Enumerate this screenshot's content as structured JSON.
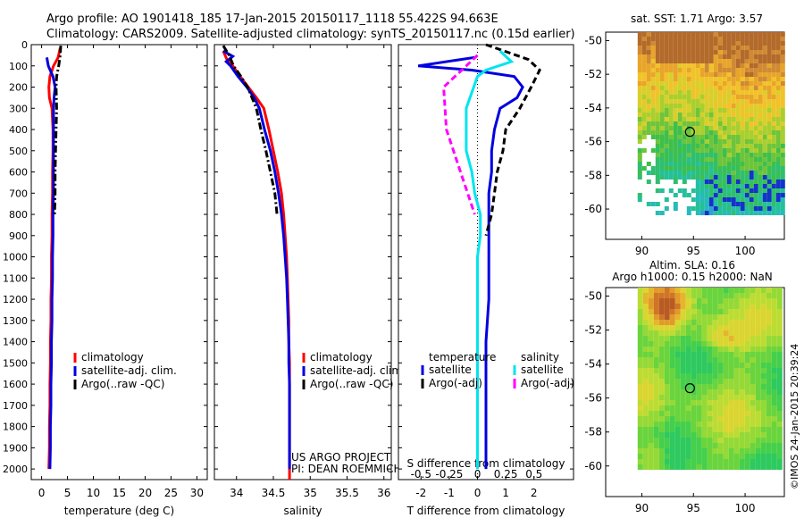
{
  "header": {
    "line1": "Argo profile: AO 1901418_185 17-Jan-2015 20150117_1118 55.422S 94.663E",
    "line2": "Climatology: CARS2009. Satellite-adjusted climatology: synTS_20150117.nc (0.15d earlier)"
  },
  "chart_data": [
    {
      "type": "line",
      "xlabel": "temperature (deg C)",
      "ylabel": "",
      "xlim": [
        -2,
        32
      ],
      "ylim": [
        2050,
        0
      ],
      "xticks": [
        0,
        5,
        10,
        15,
        20,
        25,
        30
      ],
      "yticks": [
        0,
        100,
        200,
        300,
        400,
        500,
        600,
        700,
        800,
        900,
        1000,
        1100,
        1200,
        1300,
        1400,
        1500,
        1600,
        1700,
        1800,
        1900,
        2000
      ],
      "legend": "lower-left",
      "series": [
        {
          "name": "climatology",
          "color": "#ff0000",
          "dash": "solid",
          "x": [
            3.6,
            3.2,
            2.3,
            1.6,
            1.4,
            1.5,
            2.0,
            2.2,
            2.2,
            2.1,
            2.1,
            2.0,
            2.0,
            1.9,
            1.9,
            1.8,
            1.8,
            1.7,
            1.7,
            1.6,
            1.6,
            1.5,
            1.5,
            1.4
          ],
          "y": [
            15,
            60,
            100,
            150,
            200,
            250,
            300,
            400,
            500,
            600,
            700,
            800,
            900,
            1000,
            1100,
            1200,
            1300,
            1400,
            1500,
            1600,
            1700,
            1800,
            1900,
            2000
          ]
        },
        {
          "name": "satellite-adj. clim.",
          "color": "#0000e0",
          "dash": "solid",
          "x": [
            1.0,
            1.3,
            2.2,
            2.6,
            2.4,
            2.3,
            2.3,
            2.3,
            2.3,
            2.3,
            2.2,
            2.2,
            2.1,
            2.1,
            2.0,
            2.0,
            1.9,
            1.9,
            1.8,
            1.8,
            1.7,
            1.7,
            1.6
          ],
          "y": [
            60,
            100,
            150,
            200,
            250,
            300,
            400,
            500,
            600,
            700,
            800,
            900,
            1000,
            1100,
            1200,
            1300,
            1400,
            1500,
            1600,
            1700,
            1800,
            1900,
            2000
          ]
        },
        {
          "name": "Argo(..raw -QC)",
          "color": "#000000",
          "dash": "dashdot",
          "x": [
            3.7,
            3.6,
            3.3,
            2.9,
            2.8,
            2.9,
            2.8,
            2.7,
            2.6,
            2.6,
            2.5
          ],
          "y": [
            5,
            50,
            100,
            150,
            200,
            300,
            400,
            500,
            600,
            700,
            800
          ]
        }
      ]
    },
    {
      "type": "line",
      "xlabel": "salinity",
      "ylabel": "",
      "xlim": [
        33.7,
        36.1
      ],
      "ylim": [
        2050,
        0
      ],
      "xticks": [
        34,
        34.5,
        35,
        35.5,
        36
      ],
      "legend": "lower-right",
      "annotation": [
        "US ARGO PROJECT",
        "PI: DEAN ROEMMICH"
      ],
      "series": [
        {
          "name": "climatology",
          "color": "#ff0000",
          "dash": "solid",
          "x": [
            33.82,
            33.87,
            33.95,
            34.05,
            34.16,
            34.27,
            34.37,
            34.44,
            34.5,
            34.56,
            34.61,
            34.64,
            34.66,
            34.68,
            34.69,
            34.7,
            34.71,
            34.71,
            34.72,
            34.72,
            34.72,
            34.72,
            34.72,
            34.72,
            34.72,
            34.72,
            34.72,
            34.72,
            34.72
          ],
          "y": [
            30,
            70,
            100,
            150,
            200,
            250,
            300,
            400,
            500,
            600,
            700,
            800,
            900,
            1000,
            1100,
            1200,
            1300,
            1400,
            1500,
            1600,
            1700,
            1800,
            1900,
            2000,
            2050,
            2050,
            2050,
            2050,
            2050
          ]
        },
        {
          "name": "satellite-adj. clim.",
          "color": "#0000e0",
          "dash": "solid",
          "x": [
            33.82,
            33.95,
            33.86,
            33.92,
            34.02,
            34.14,
            34.24,
            34.31,
            34.38,
            34.46,
            34.52,
            34.57,
            34.61,
            34.64,
            34.66,
            34.68,
            34.69,
            34.7,
            34.71,
            34.71,
            34.72,
            34.72,
            34.72,
            34.72,
            34.72
          ],
          "y": [
            30,
            55,
            80,
            100,
            150,
            200,
            250,
            300,
            400,
            500,
            600,
            700,
            800,
            900,
            1000,
            1100,
            1200,
            1300,
            1400,
            1500,
            1600,
            1700,
            1800,
            1900,
            2000
          ]
        },
        {
          "name": "Argo(..raw -QC)",
          "color": "#000000",
          "dash": "dashdot",
          "x": [
            33.82,
            33.9,
            33.96,
            34.06,
            34.15,
            34.21,
            34.27,
            34.33,
            34.4,
            34.46,
            34.52,
            34.55
          ],
          "y": [
            5,
            50,
            100,
            150,
            200,
            250,
            300,
            400,
            500,
            600,
            700,
            800
          ]
        }
      ]
    },
    {
      "type": "line",
      "xlabel": "T difference from climatology",
      "xlabel2": "S difference from climatology",
      "ylabel": "",
      "xlim": [
        -2.8,
        3.4
      ],
      "ylim": [
        2050,
        0
      ],
      "xticks": [
        -2,
        -1,
        0,
        1,
        2
      ],
      "xticks_s": [
        -0.5,
        -0.25,
        0,
        0.25,
        0.5
      ],
      "legend_groups": [
        "temperature",
        "salinity"
      ],
      "legend": "lower-center",
      "series": [
        {
          "name": "satellite",
          "group": "temperature",
          "color": "#0000e0",
          "dash": "solid",
          "x": [
            -0.1,
            -2.1,
            -0.2,
            1.3,
            1.6,
            1.4,
            0.8,
            0.6,
            0.5,
            0.5,
            0.4,
            0.4,
            0.4,
            0.4,
            0.4,
            0.3,
            0.3,
            0.3,
            0.3,
            0.3
          ],
          "y": [
            60,
            100,
            120,
            150,
            200,
            250,
            300,
            400,
            500,
            600,
            700,
            800,
            900,
            1000,
            1200,
            1400,
            1600,
            1800,
            1900,
            2000
          ]
        },
        {
          "name": "Argo(-adj)",
          "group": "temperature",
          "color": "#000000",
          "dash": "dashed",
          "x": [
            0.3,
            1.8,
            2.2,
            1.9,
            1.5,
            1.0,
            0.9,
            0.7,
            0.6,
            0.5,
            0.3
          ],
          "y": [
            0,
            70,
            120,
            200,
            300,
            400,
            500,
            600,
            700,
            800,
            900
          ]
        },
        {
          "name": "satellite",
          "group": "salinity",
          "color": "#00e5ee",
          "dash": "solid",
          "x": [
            0.8,
            1.2,
            0.3,
            0.0,
            -0.4,
            -0.4,
            -0.2,
            -0.1,
            0.1,
            0.1,
            0.0,
            0.0,
            0.0,
            0.0,
            0.0
          ],
          "y": [
            30,
            80,
            120,
            150,
            300,
            500,
            600,
            700,
            800,
            900,
            1000,
            1200,
            1400,
            1700,
            2000
          ]
        },
        {
          "name": "Argo(-adj)",
          "group": "salinity",
          "color": "#ff00ff",
          "dash": "dashed",
          "x": [
            0.0,
            -0.4,
            -1.2,
            -1.1,
            -0.6,
            -0.1
          ],
          "y": [
            50,
            100,
            200,
            400,
            600,
            800
          ]
        }
      ]
    },
    {
      "type": "heatmap",
      "title": "sat. SST: 1.71  Argo: 3.57",
      "xticks": [
        90,
        95,
        100
      ],
      "yticks": [
        -50,
        -52,
        -54,
        -56,
        -58,
        -60
      ],
      "xlim": [
        86.5,
        103.8
      ],
      "ylim": [
        -61.8,
        -49.5
      ],
      "marker": {
        "lon": 94.66,
        "lat": -55.42
      }
    },
    {
      "type": "heatmap",
      "title": "Altim. SLA: 0.16",
      "subtitle": "Argo h1000: 0.15 h2000: NaN",
      "xticks": [
        90,
        95,
        100
      ],
      "yticks": [
        -50,
        -52,
        -54,
        -56,
        -58,
        -60
      ],
      "xlim": [
        86.5,
        103.8
      ],
      "ylim": [
        -61.8,
        -49.5
      ],
      "marker": {
        "lon": 94.66,
        "lat": -55.42
      }
    }
  ],
  "stamp": "©IMOS 24-Jan-2015 20:39:24"
}
